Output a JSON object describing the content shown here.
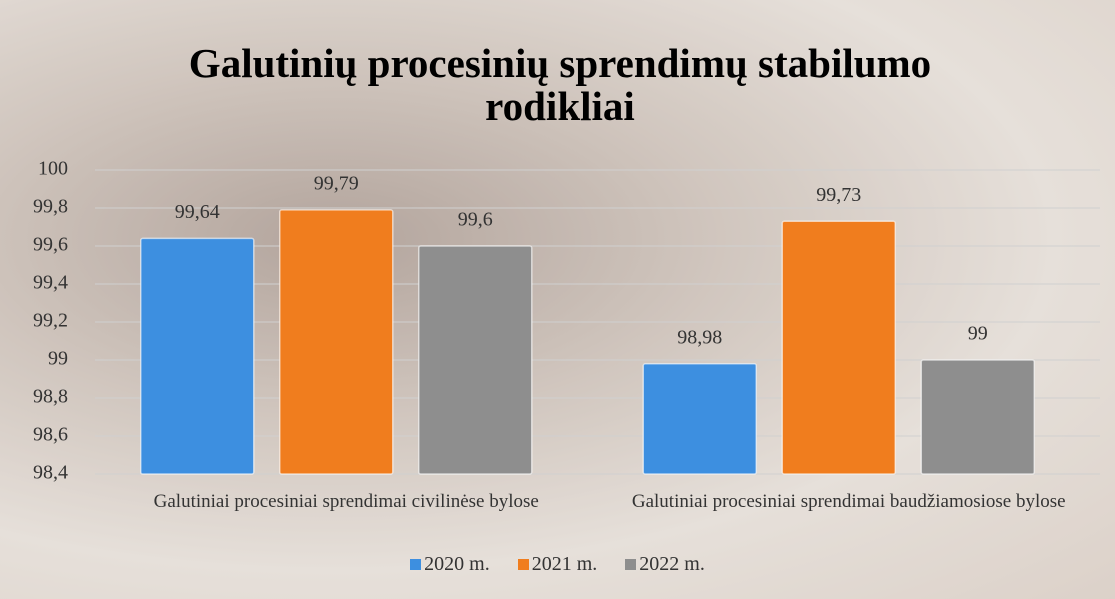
{
  "chart_data": {
    "type": "bar",
    "title": "Galutinių procesinių sprendimų stabilumo rodikliai",
    "categories": [
      "Galutiniai procesiniai sprendimai civilinėse bylose",
      "Galutiniai procesiniai sprendimai baudžiamosiose bylose"
    ],
    "series": [
      {
        "name": "2020 m.",
        "color": "#3d8fe0",
        "values": [
          99.64,
          98.98
        ],
        "value_labels": [
          "99,64",
          "98,98"
        ]
      },
      {
        "name": "2021 m.",
        "color": "#f07d1e",
        "values": [
          99.79,
          99.73
        ],
        "value_labels": [
          "99,79",
          "99,73"
        ]
      },
      {
        "name": "2022 m.",
        "color": "#8e8e8e",
        "values": [
          99.6,
          99
        ],
        "value_labels": [
          "99,6",
          "99"
        ]
      }
    ],
    "ylim": [
      98.4,
      100
    ],
    "yticks": [
      {
        "value": 98.4,
        "label": "98,4"
      },
      {
        "value": 98.6,
        "label": "98,6"
      },
      {
        "value": 98.8,
        "label": "98,8"
      },
      99,
      {
        "value": 99.2,
        "label": "99,2"
      },
      {
        "value": 99.4,
        "label": "99,4"
      },
      {
        "value": 99.6,
        "label": "99,6"
      },
      {
        "value": 99.8,
        "label": "99,8"
      },
      100
    ],
    "grid": true,
    "legend": "bottom"
  }
}
